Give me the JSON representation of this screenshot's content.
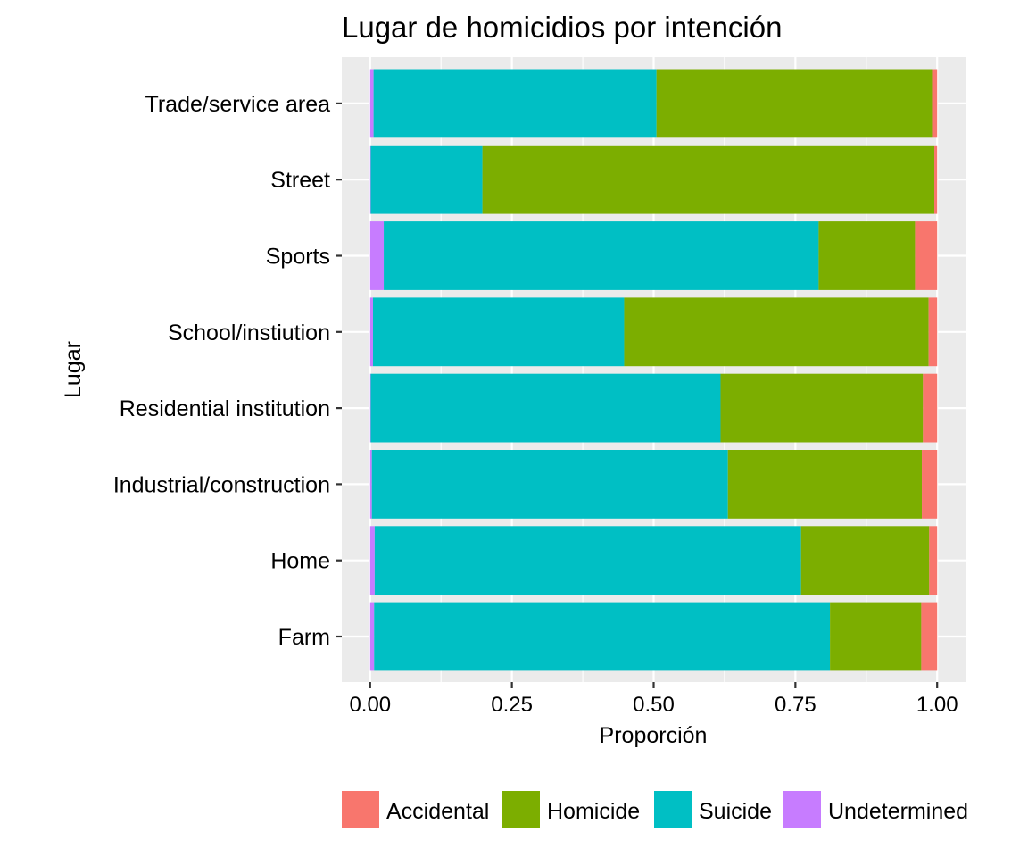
{
  "chart_data": {
    "type": "bar",
    "orientation": "horizontal",
    "stacked": true,
    "title": "Lugar de homicidios por intención",
    "xlabel": "Proporción",
    "ylabel": "Lugar",
    "xlim": [
      0,
      1
    ],
    "xticks": [
      "0.00",
      "0.25",
      "0.50",
      "0.75",
      "1.00"
    ],
    "grid": true,
    "legend_position": "bottom",
    "categories": [
      "Farm",
      "Home",
      "Industrial/construction",
      "Residential institution",
      "School/instiution",
      "Sports",
      "Street",
      "Trade/service area"
    ],
    "series": [
      {
        "name": "Undetermined",
        "color": "#C77CFF",
        "values": [
          0.007,
          0.008,
          0.003,
          0.001,
          0.005,
          0.024,
          0.001,
          0.006
        ]
      },
      {
        "name": "Suicide",
        "color": "#00BFC4",
        "values": [
          0.804,
          0.752,
          0.628,
          0.617,
          0.443,
          0.767,
          0.197,
          0.499
        ]
      },
      {
        "name": "Homicide",
        "color": "#7CAE00",
        "values": [
          0.161,
          0.226,
          0.342,
          0.357,
          0.537,
          0.17,
          0.797,
          0.486
        ]
      },
      {
        "name": "Accidental",
        "color": "#F8766D",
        "values": [
          0.028,
          0.014,
          0.027,
          0.025,
          0.015,
          0.039,
          0.005,
          0.009
        ]
      }
    ],
    "legend": [
      {
        "name": "Accidental",
        "color": "#F8766D"
      },
      {
        "name": "Homicide",
        "color": "#7CAE00"
      },
      {
        "name": "Suicide",
        "color": "#00BFC4"
      },
      {
        "name": "Undetermined",
        "color": "#C77CFF"
      }
    ]
  }
}
